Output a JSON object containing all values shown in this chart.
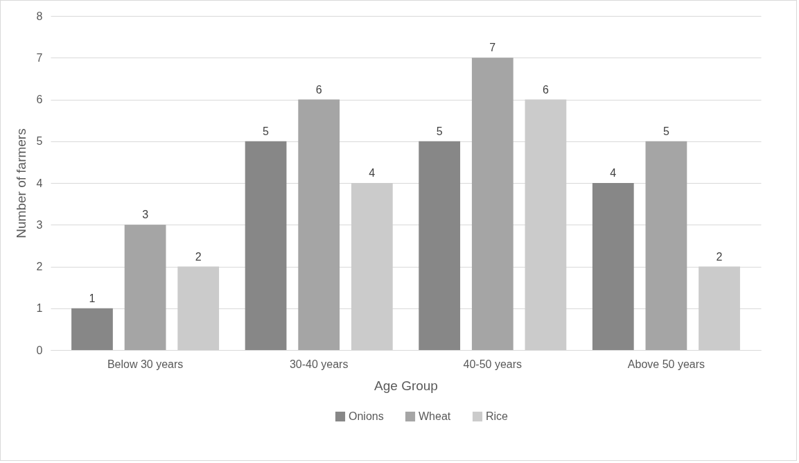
{
  "chart_data": {
    "type": "bar",
    "xlabel": "Age Group",
    "ylabel": "Number of farmers",
    "categories": [
      "Below 30 years",
      "30-40 years",
      "40-50 years",
      "Above 50 years"
    ],
    "series": [
      {
        "name": "Onions",
        "color": "#878787",
        "values": [
          1,
          5,
          5,
          4
        ]
      },
      {
        "name": "Wheat",
        "color": "#a5a5a5",
        "values": [
          3,
          6,
          7,
          5
        ]
      },
      {
        "name": "Rice",
        "color": "#cbcbcb",
        "values": [
          2,
          4,
          6,
          2
        ]
      }
    ],
    "ylim": [
      0,
      8
    ],
    "yticks": [
      0,
      1,
      2,
      3,
      4,
      5,
      6,
      7,
      8
    ],
    "grid": "y",
    "legend": "bottom",
    "data_labels": true
  }
}
